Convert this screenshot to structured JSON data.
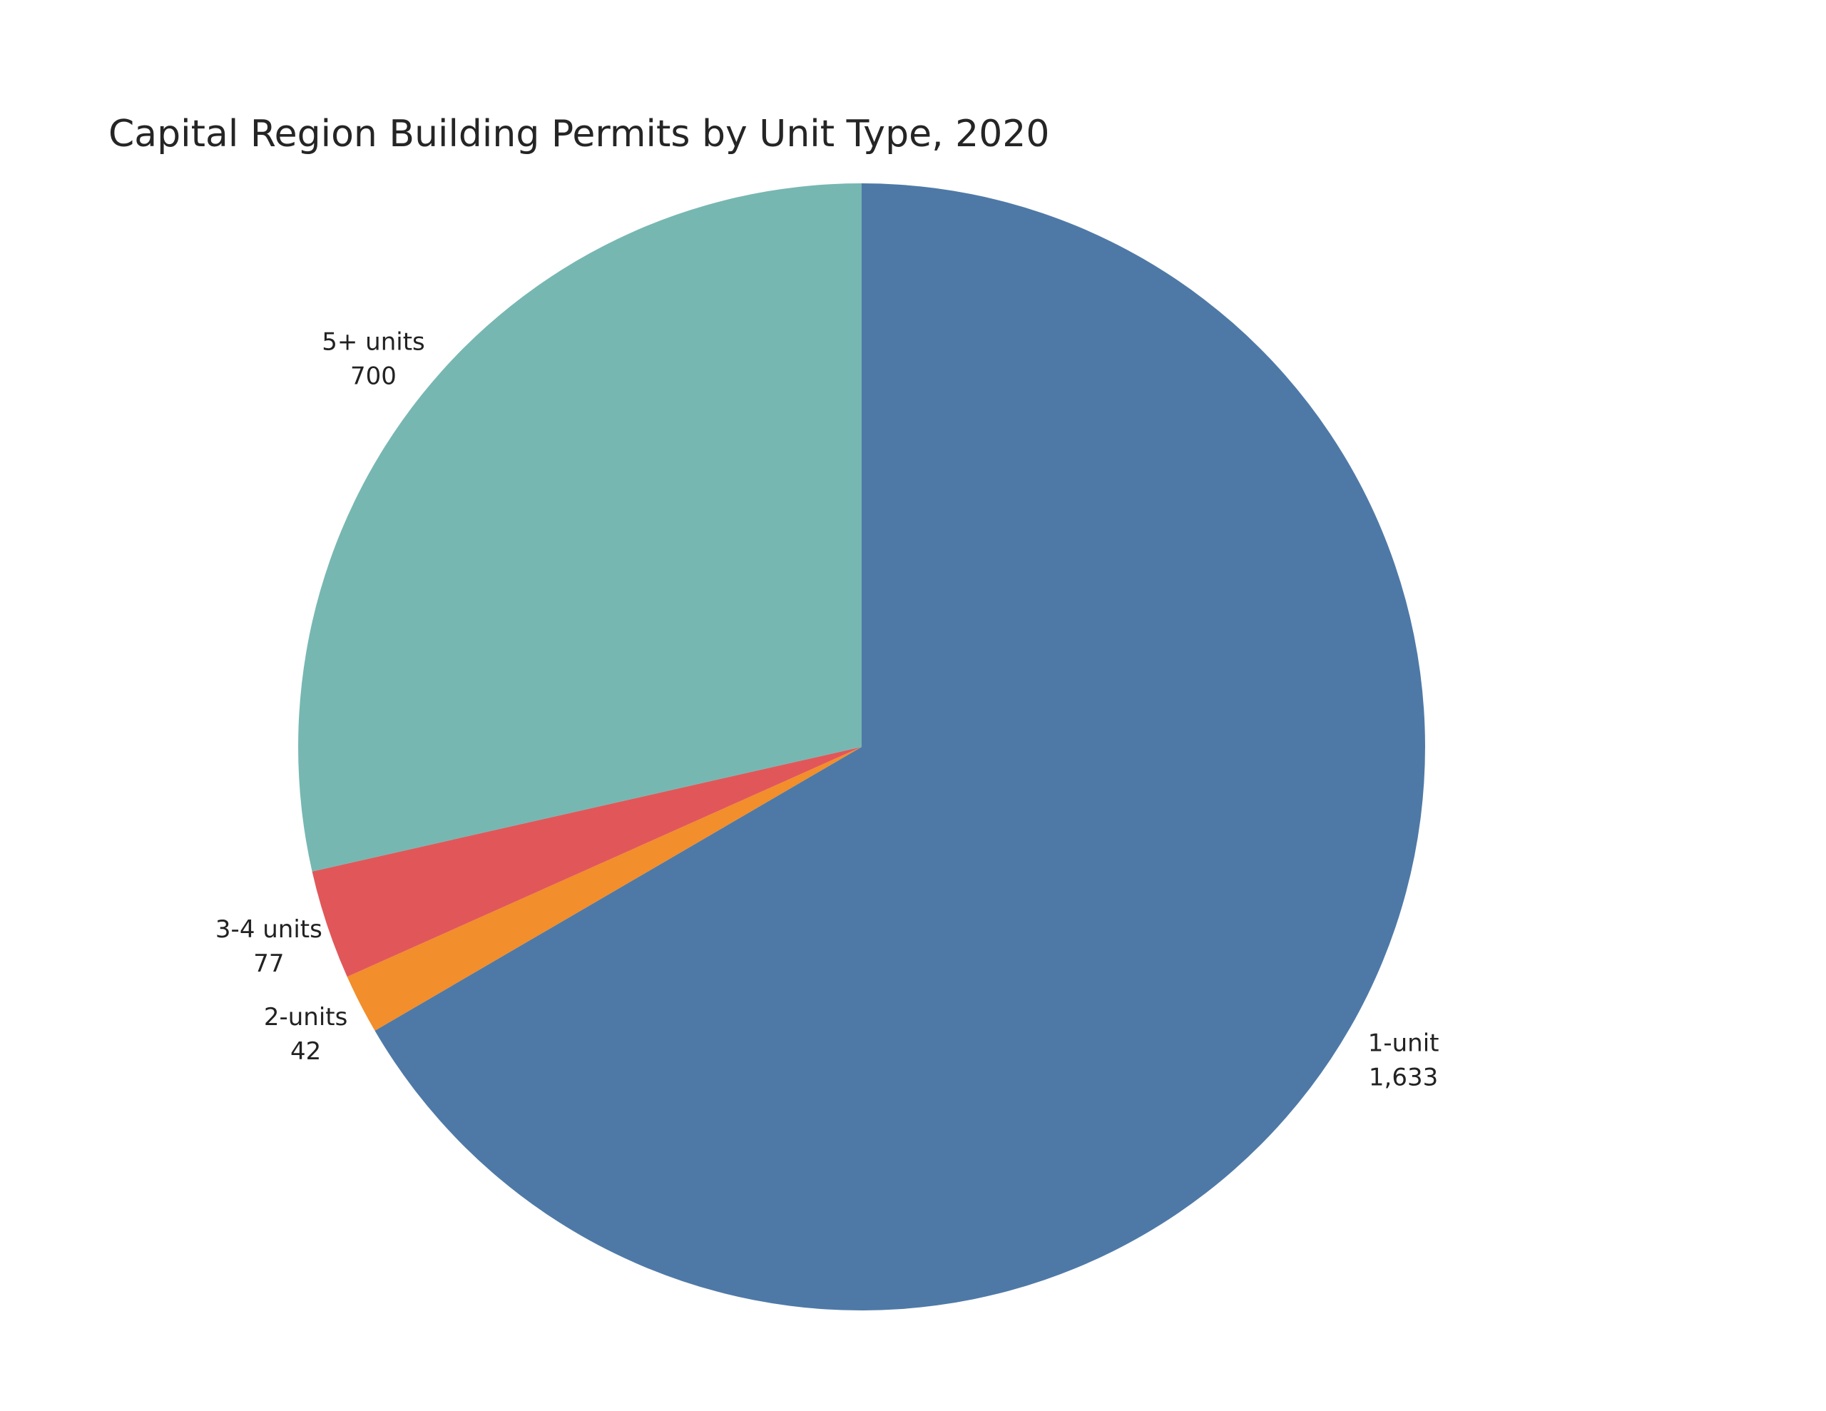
{
  "page": {
    "background_color": "#ffffff"
  },
  "chart_data": {
    "type": "pie",
    "title": "Capital Region Building Permits by Unit Type, 2020",
    "title_color": "#252525",
    "label_color": "#222222",
    "start_angle_deg": 0,
    "direction": "clockwise",
    "legend": "none",
    "slices": [
      {
        "label": "1-unit",
        "value": 1633,
        "display_value": "1,633",
        "color": "#4e79a7"
      },
      {
        "label": "2-units",
        "value": 42,
        "display_value": "42",
        "color": "#f28e2b"
      },
      {
        "label": "3-4 units",
        "value": 77,
        "display_value": "77",
        "color": "#e15759"
      },
      {
        "label": "5+ units",
        "value": 700,
        "display_value": "700",
        "color": "#76b7b2"
      }
    ]
  }
}
